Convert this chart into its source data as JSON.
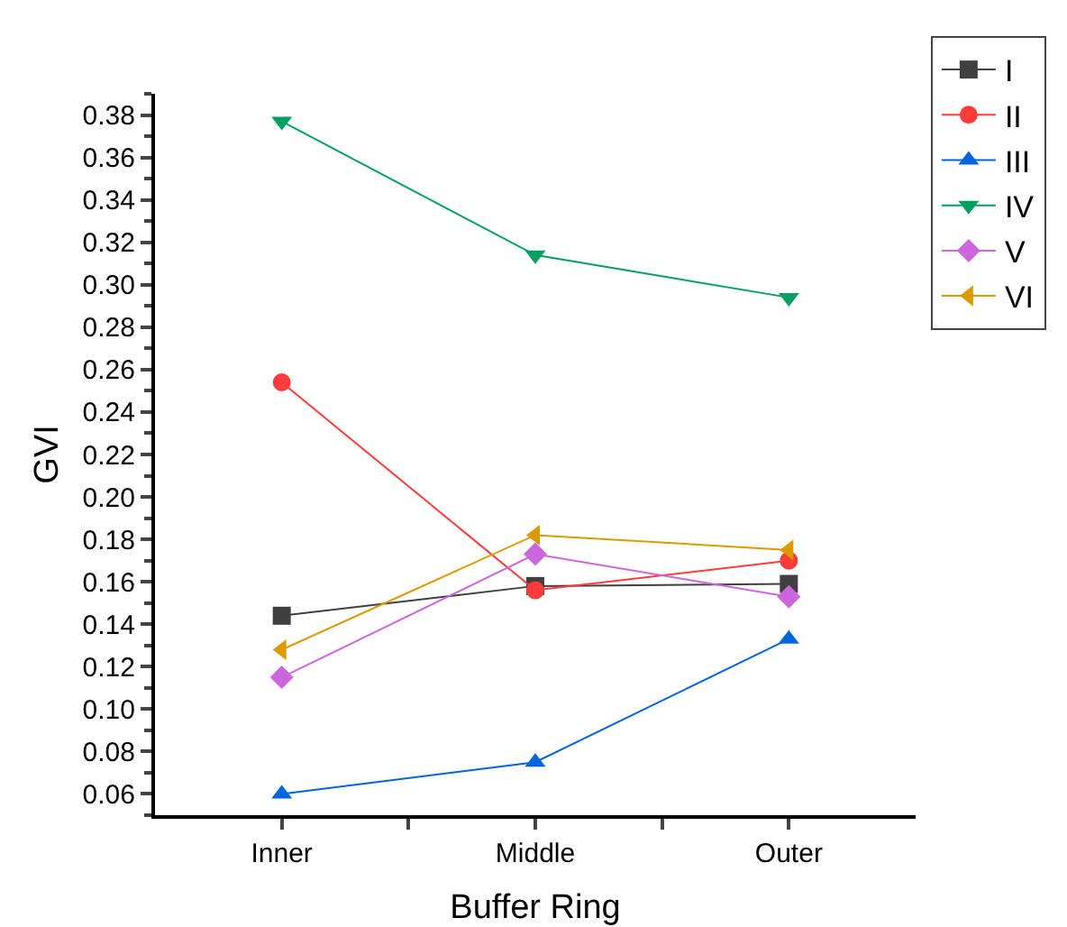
{
  "chart_data": {
    "type": "line",
    "xlabel": "Buffer Ring",
    "ylabel": "GVI",
    "categories": [
      "Inner",
      "Middle",
      "Outer"
    ],
    "series": [
      {
        "name": "I",
        "color": "#404040",
        "marker": "square",
        "values": [
          0.144,
          0.158,
          0.159
        ]
      },
      {
        "name": "II",
        "color": "#ff3b3b",
        "marker": "circle",
        "values": [
          0.254,
          0.156,
          0.17
        ]
      },
      {
        "name": "III",
        "color": "#0066dd",
        "marker": "triangle",
        "values": [
          0.06,
          0.075,
          0.133
        ]
      },
      {
        "name": "IV",
        "color": "#00a060",
        "marker": "triangle-down",
        "values": [
          0.377,
          0.314,
          0.294
        ]
      },
      {
        "name": "V",
        "color": "#cc66dd",
        "marker": "diamond",
        "values": [
          0.115,
          0.173,
          0.153
        ]
      },
      {
        "name": "VI",
        "color": "#dd9900",
        "marker": "triangle-left",
        "values": [
          0.128,
          0.182,
          0.175
        ]
      }
    ],
    "ylim": [
      0.05,
      0.39
    ],
    "yticks": [
      0.06,
      0.08,
      {
        "value": 0.1,
        "label": "0.10"
      },
      0.12,
      0.14,
      0.16,
      0.18,
      {
        "value": 0.2,
        "label": "0.20"
      },
      0.22,
      0.24,
      0.26,
      0.28,
      {
        "value": 0.3,
        "label": "0.30"
      },
      0.32,
      0.34,
      0.36,
      0.38
    ],
    "grid": false,
    "legend": "top right",
    "line_style": "solid"
  }
}
